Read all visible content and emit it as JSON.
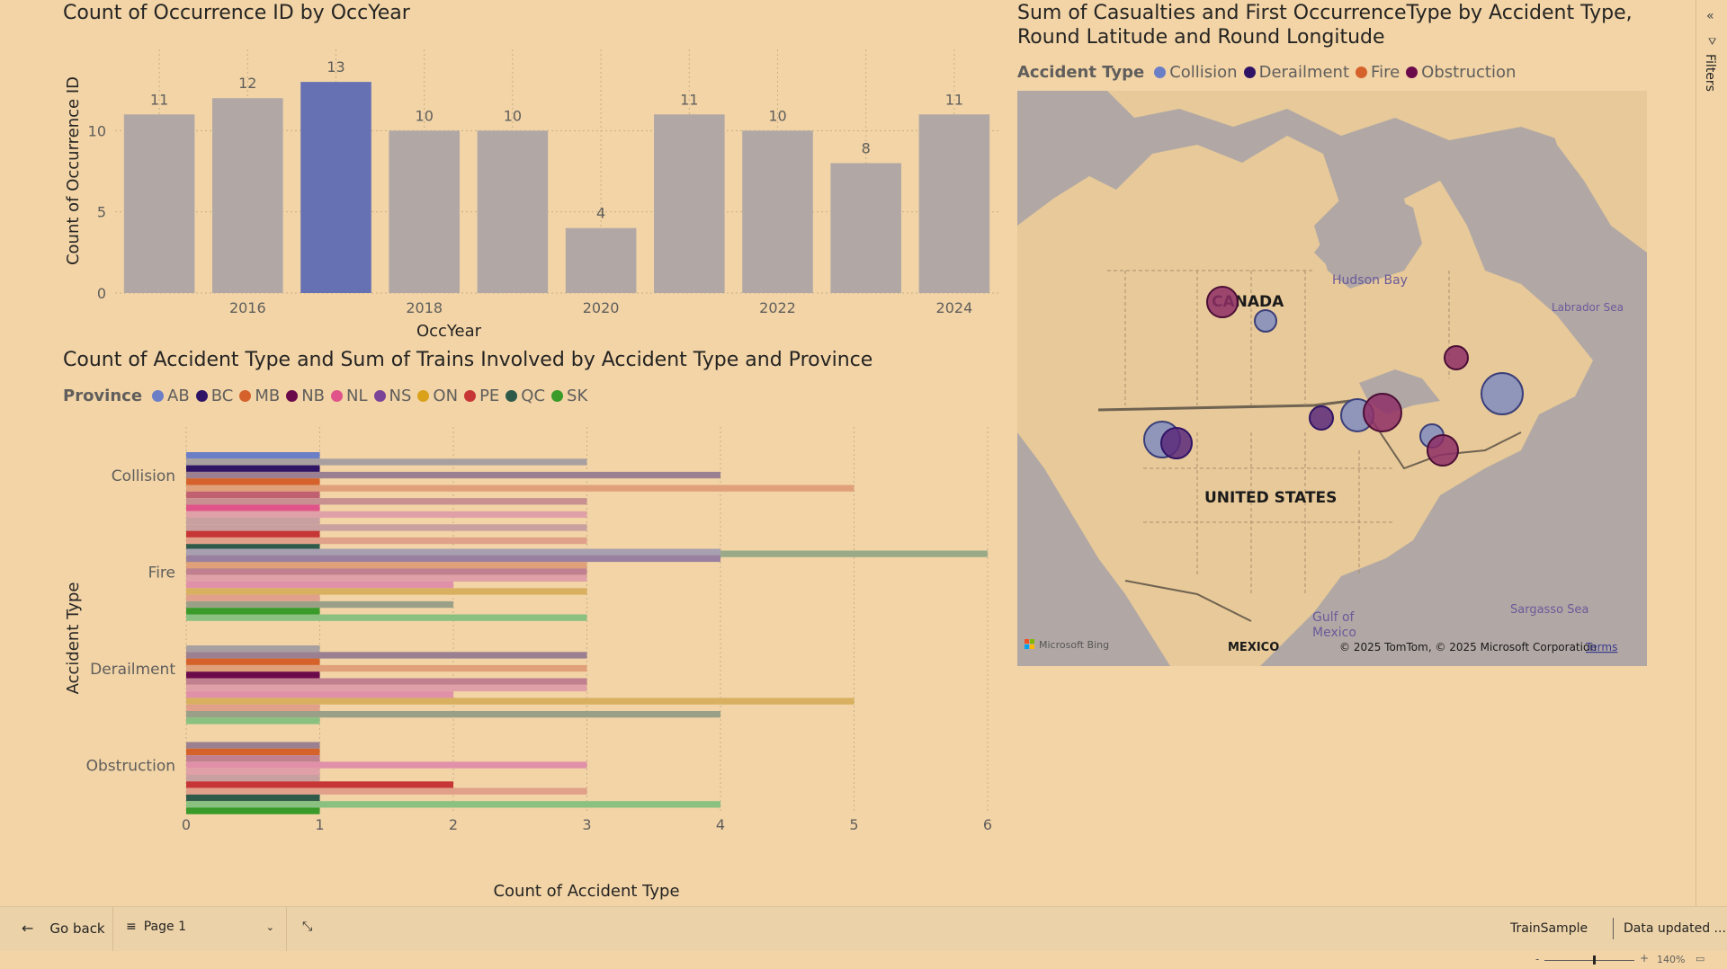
{
  "bar_chart": {
    "title": "Count of Occurrence ID by OccYear",
    "chart_data": {
      "type": "bar",
      "categories": [
        "2015",
        "2016",
        "2017",
        "2018",
        "2019",
        "2020",
        "2021",
        "2022",
        "2023",
        "2024"
      ],
      "values": [
        11,
        12,
        13,
        10,
        10,
        4,
        11,
        10,
        8,
        11
      ],
      "labels": [
        "11",
        "12",
        "13",
        "10",
        "10",
        "4",
        "11",
        "10",
        "8",
        "11"
      ],
      "highlighted": "2017",
      "xlabel": "OccYear",
      "ylabel": "Count of Occurrence ID",
      "ylim": [
        0,
        15
      ],
      "yticks": [
        "0",
        "5",
        "10"
      ],
      "ytick_values": [
        0,
        5,
        10
      ],
      "xtick_labels": [
        "2016",
        "2018",
        "2020",
        "2022",
        "2024"
      ],
      "xtick_years": [
        "2016",
        "2018",
        "2020",
        "2022",
        "2024"
      ]
    }
  },
  "hbar_chart": {
    "title": "Count of Accident Type and Sum of Trains Involved by Accident Type and Province",
    "legend_title": "Province",
    "legend": [
      {
        "name": "AB",
        "color": "#6b7fc7"
      },
      {
        "name": "BC",
        "color": "#2f1466"
      },
      {
        "name": "MB",
        "color": "#d4622a"
      },
      {
        "name": "NB",
        "color": "#6b0a4a"
      },
      {
        "name": "NL",
        "color": "#e0548a"
      },
      {
        "name": "NS",
        "color": "#7b4496"
      },
      {
        "name": "ON",
        "color": "#d9a21a"
      },
      {
        "name": "PE",
        "color": "#c73636"
      },
      {
        "name": "QC",
        "color": "#2f5a4a"
      },
      {
        "name": "SK",
        "color": "#3a9a2a"
      }
    ],
    "chart_data": {
      "type": "bar",
      "orientation": "horizontal",
      "categories": [
        "Collision",
        "Fire",
        "Derailment",
        "Obstruction"
      ],
      "xlabel": "Count of Accident Type",
      "ylabel": "Accident Type",
      "xlim": [
        0,
        6
      ],
      "xticks": [
        "0",
        "1",
        "2",
        "3",
        "4",
        "5",
        "6"
      ],
      "series_per_category": [
        [
          {
            "v": 1,
            "c": "#6b7fc7"
          },
          {
            "v": 3,
            "c": "#a8a0a0"
          },
          {
            "v": 1,
            "c": "#2f1466"
          },
          {
            "v": 4,
            "c": "#9a8090"
          },
          {
            "v": 1,
            "c": "#d4622a"
          },
          {
            "v": 5,
            "c": "#e0a07a"
          },
          {
            "v": 1,
            "c": "#c06070"
          },
          {
            "v": 3,
            "c": "#c89090"
          },
          {
            "v": 1,
            "c": "#e0548a"
          },
          {
            "v": 3,
            "c": "#e0a0a8"
          },
          {
            "v": 1,
            "c": "#c8a0a0"
          },
          {
            "v": 3,
            "c": "#c8a0a0"
          },
          {
            "v": 1,
            "c": "#c73636"
          },
          {
            "v": 3,
            "c": "#e0a08a"
          },
          {
            "v": 1,
            "c": "#2f5a4a"
          },
          {
            "v": 6,
            "c": "#9aaa88"
          },
          {
            "v": 1,
            "c": "#3a9a2a"
          },
          {
            "v": 1,
            "c": "#8ac080"
          }
        ],
        [
          {
            "v": 4,
            "c": "#a8a0b0"
          },
          {
            "v": 4,
            "c": "#9a80a0"
          },
          {
            "v": 3,
            "c": "#e0a07a"
          },
          {
            "v": 3,
            "c": "#c08090"
          },
          {
            "v": 3,
            "c": "#e0a0a8"
          },
          {
            "v": 2,
            "c": "#e090a8"
          },
          {
            "v": 3,
            "c": "#d8b060"
          },
          {
            "v": 1,
            "c": "#e0a08a"
          },
          {
            "v": 2,
            "c": "#9aa088"
          },
          {
            "v": 1,
            "c": "#3a9a2a"
          },
          {
            "v": 3,
            "c": "#8ac080"
          }
        ],
        [
          {
            "v": 1,
            "c": "#a8a0a0"
          },
          {
            "v": 3,
            "c": "#9a8090"
          },
          {
            "v": 1,
            "c": "#d4622a"
          },
          {
            "v": 3,
            "c": "#e0a07a"
          },
          {
            "v": 1,
            "c": "#6b0a4a"
          },
          {
            "v": 3,
            "c": "#c08090"
          },
          {
            "v": 3,
            "c": "#e0a0a8"
          },
          {
            "v": 2,
            "c": "#e090a8"
          },
          {
            "v": 5,
            "c": "#d8b060"
          },
          {
            "v": 1,
            "c": "#e0a08a"
          },
          {
            "v": 4,
            "c": "#9aa088"
          },
          {
            "v": 1,
            "c": "#8ac080"
          }
        ],
        [
          {
            "v": 1,
            "c": "#9a8090"
          },
          {
            "v": 1,
            "c": "#d4622a"
          },
          {
            "v": 1,
            "c": "#c08090"
          },
          {
            "v": 3,
            "c": "#e090a8"
          },
          {
            "v": 1,
            "c": "#e0a0a8"
          },
          {
            "v": 1,
            "c": "#c8a0a0"
          },
          {
            "v": 2,
            "c": "#c73636"
          },
          {
            "v": 3,
            "c": "#e0a08a"
          },
          {
            "v": 1,
            "c": "#2f5a4a"
          },
          {
            "v": 4,
            "c": "#8ac080"
          },
          {
            "v": 1,
            "c": "#3a9a2a"
          }
        ]
      ]
    }
  },
  "map": {
    "title": "Sum of Casualties and First OccurrenceType by Accident Type, Round Latitude and Round Longitude",
    "legend_title": "Accident Type",
    "legend": [
      {
        "name": "Collision",
        "color": "#6b7fc7"
      },
      {
        "name": "Derailment",
        "color": "#2f1466"
      },
      {
        "name": "Fire",
        "color": "#d4622a"
      },
      {
        "name": "Obstruction",
        "color": "#6b0a4a"
      }
    ],
    "labels": {
      "canada": "CANADA",
      "us": "UNITED STATES",
      "mexico": "MEXICO",
      "hudson": "Hudson Bay",
      "labrador": "Labrador Sea",
      "gulf1": "Gulf of",
      "gulf2": "Mexico",
      "sargasso": "Sargasso Sea"
    },
    "attribution": "© 2025 TomTom, © 2025 Microsoft Corporation",
    "terms": "Terms",
    "bing": "Microsoft Bing"
  },
  "bottom": {
    "go_back": "Go back",
    "page": "Page 1",
    "report": "TrainSample",
    "data_updated": "Data updated ..."
  },
  "status": {
    "zoom": "140%"
  },
  "filters": {
    "label": "Filters"
  }
}
